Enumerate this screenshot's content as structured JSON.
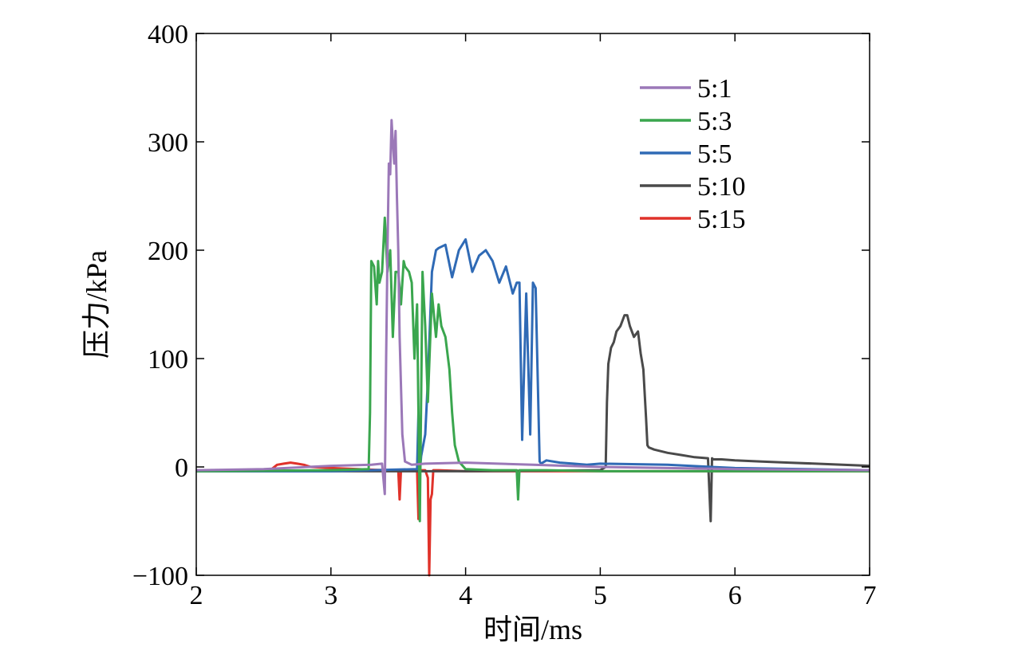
{
  "chart_data": {
    "type": "line",
    "title": "",
    "xlabel": "时间/ms",
    "ylabel": "压力/kPa",
    "xlim": [
      2,
      7
    ],
    "ylim": [
      -100,
      400
    ],
    "xticks": [
      2,
      3,
      4,
      5,
      6,
      7
    ],
    "yticks": [
      -100,
      0,
      100,
      200,
      300,
      400
    ],
    "ytick_labels": [
      "−100",
      "0",
      "100",
      "200",
      "300",
      "400"
    ],
    "grid": false,
    "legend_position": "top-right",
    "series": [
      {
        "name": "5:15",
        "color": "#e0322a",
        "x": [
          2.0,
          2.55,
          2.6,
          2.65,
          2.7,
          2.75,
          2.8,
          2.85,
          3.0,
          3.2,
          3.4,
          3.5,
          3.51,
          3.52,
          3.53,
          3.55,
          3.6,
          3.64,
          3.65,
          3.66,
          3.68,
          3.7,
          3.72,
          3.73,
          3.74,
          3.75,
          3.76,
          3.8,
          4.0,
          5.0,
          6.0,
          7.0
        ],
        "y": [
          -4,
          -3,
          2,
          3,
          4,
          3,
          2,
          0,
          -1,
          -2,
          -3,
          -3,
          -30,
          -3,
          -3,
          -3,
          -3,
          -3,
          -48,
          -3,
          -3,
          -3,
          -10,
          -100,
          -30,
          -25,
          -3,
          -3,
          -4,
          -4,
          -4,
          -4
        ]
      },
      {
        "name": "5:10",
        "color": "#4a4a4a",
        "x": [
          2.0,
          3.0,
          4.0,
          5.0,
          5.04,
          5.05,
          5.06,
          5.08,
          5.1,
          5.12,
          5.15,
          5.18,
          5.2,
          5.22,
          5.25,
          5.28,
          5.3,
          5.32,
          5.34,
          5.35,
          5.36,
          5.4,
          5.5,
          5.6,
          5.7,
          5.8,
          5.82,
          5.83,
          5.84,
          5.9,
          6.0,
          6.2,
          6.4,
          6.6,
          6.8,
          7.0
        ],
        "y": [
          -4,
          -4,
          -4,
          -3,
          0,
          60,
          95,
          110,
          115,
          125,
          130,
          140,
          140,
          130,
          120,
          125,
          105,
          90,
          45,
          20,
          18,
          16,
          13,
          11,
          9,
          8,
          -50,
          8,
          7,
          7,
          6,
          5,
          4,
          3,
          2,
          1
        ]
      },
      {
        "name": "5:5",
        "color": "#2f6ab5",
        "x": [
          2.0,
          3.0,
          3.64,
          3.65,
          3.66,
          3.67,
          3.7,
          3.72,
          3.75,
          3.78,
          3.8,
          3.85,
          3.9,
          3.95,
          4.0,
          4.05,
          4.1,
          4.15,
          4.2,
          4.25,
          4.3,
          4.35,
          4.38,
          4.4,
          4.42,
          4.45,
          4.48,
          4.5,
          4.52,
          4.55,
          4.56,
          4.6,
          4.7,
          4.8,
          4.9,
          5.0,
          5.5,
          6.0,
          7.0
        ],
        "y": [
          -4,
          -4,
          -2,
          50,
          -5,
          10,
          30,
          80,
          180,
          200,
          202,
          205,
          175,
          200,
          210,
          180,
          195,
          200,
          190,
          170,
          185,
          160,
          170,
          170,
          25,
          160,
          30,
          170,
          165,
          5,
          3,
          6,
          4,
          3,
          2,
          3,
          2,
          -1,
          -3
        ]
      },
      {
        "name": "5:3",
        "color": "#3aa64e",
        "x": [
          2.0,
          3.0,
          3.28,
          3.29,
          3.3,
          3.32,
          3.34,
          3.35,
          3.36,
          3.38,
          3.4,
          3.42,
          3.44,
          3.46,
          3.48,
          3.5,
          3.52,
          3.54,
          3.55,
          3.58,
          3.6,
          3.62,
          3.64,
          3.66,
          3.68,
          3.7,
          3.72,
          3.75,
          3.78,
          3.8,
          3.82,
          3.85,
          3.88,
          3.9,
          3.92,
          3.95,
          4.0,
          4.2,
          4.38,
          4.39,
          4.4,
          4.6,
          5.0,
          6.0,
          7.0
        ],
        "y": [
          -4,
          -3,
          -2,
          50,
          190,
          185,
          150,
          190,
          170,
          180,
          230,
          180,
          200,
          120,
          180,
          180,
          150,
          190,
          185,
          180,
          170,
          100,
          150,
          -50,
          180,
          130,
          60,
          160,
          120,
          150,
          130,
          120,
          90,
          50,
          20,
          5,
          -2,
          -3,
          -3,
          -30,
          -3,
          -3,
          -4,
          -4,
          -4
        ]
      },
      {
        "name": "5:1",
        "color": "#9b78b8",
        "x": [
          2.0,
          2.5,
          3.0,
          3.3,
          3.38,
          3.4,
          3.41,
          3.42,
          3.43,
          3.44,
          3.45,
          3.46,
          3.47,
          3.48,
          3.49,
          3.5,
          3.51,
          3.53,
          3.55,
          3.6,
          3.7,
          4.0,
          4.5,
          5.0,
          6.0,
          7.0
        ],
        "y": [
          -3,
          -2,
          1,
          2,
          3,
          -25,
          100,
          200,
          280,
          270,
          320,
          300,
          280,
          310,
          250,
          200,
          120,
          30,
          5,
          2,
          3,
          4,
          2,
          0,
          -2,
          -3
        ]
      }
    ]
  }
}
